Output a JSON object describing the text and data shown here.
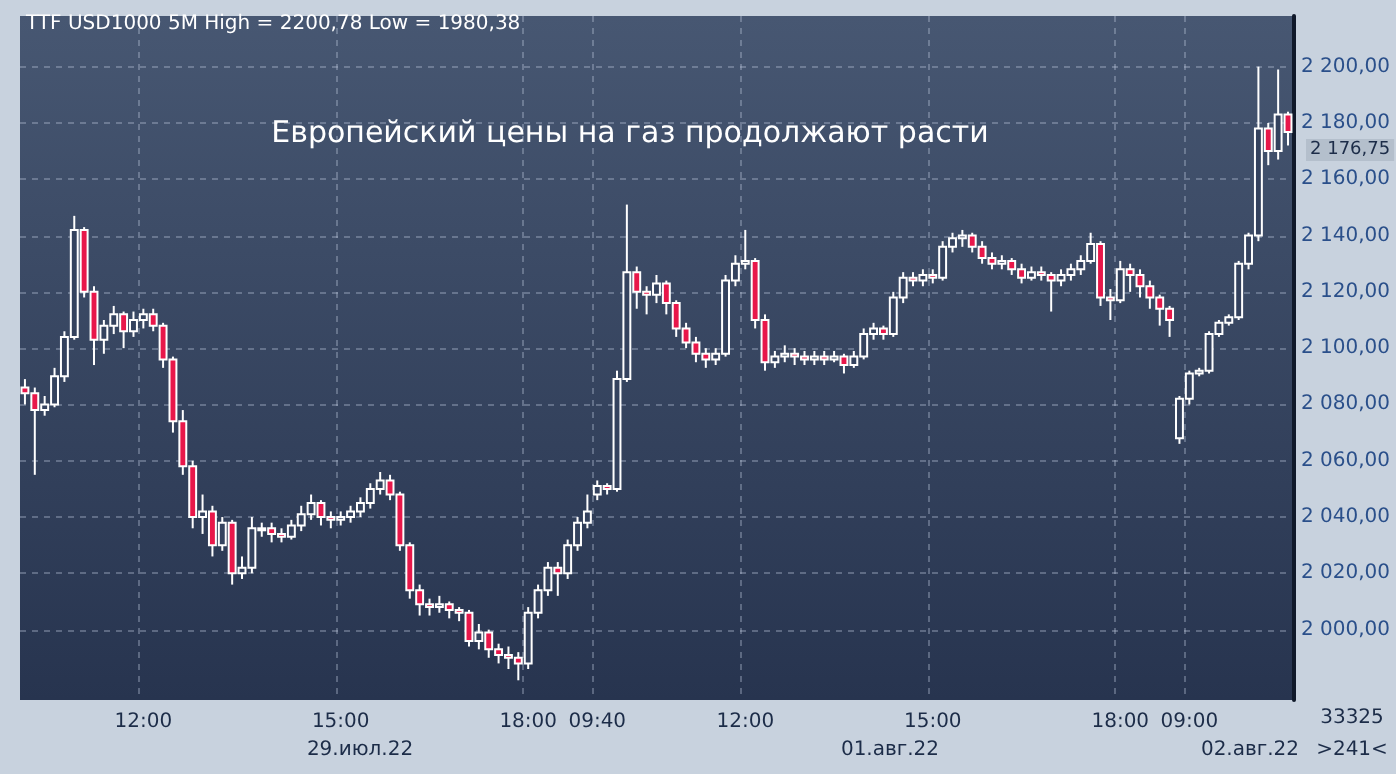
{
  "chart_data": {
    "type": "candlestick",
    "title": "TTF USD1000 5M High = 2200,78 Low = 1980,38",
    "annotations": [
      "Европейский цены на газ продолжают расти",
      "29.июл.22",
      "01.авг.22",
      "02.авг.22",
      "33325",
      ">241<",
      "2 176,75"
    ],
    "categories": [
      null,
      null,
      null,
      null,
      null,
      null,
      null,
      null,
      null,
      null,
      null,
      null,
      "12:00",
      null,
      null,
      null,
      null,
      null,
      null,
      null,
      null,
      null,
      null,
      null,
      null,
      null,
      null,
      null,
      null,
      null,
      null,
      null,
      "15:00",
      null,
      null,
      null,
      null,
      null,
      null,
      null,
      null,
      null,
      null,
      null,
      null,
      null,
      null,
      null,
      null,
      null,
      null,
      "18:00",
      null,
      null,
      null,
      null,
      null,
      null,
      "09:40",
      null,
      null,
      null,
      null,
      null,
      null,
      null,
      null,
      null,
      null,
      null,
      null,
      null,
      null,
      "12:00",
      null,
      null,
      null,
      null,
      null,
      null,
      null,
      null,
      null,
      null,
      null,
      null,
      null,
      null,
      null,
      null,
      null,
      null,
      "15:00",
      null,
      null,
      null,
      null,
      null,
      null,
      null,
      null,
      null,
      null,
      null,
      null,
      null,
      null,
      null,
      null,
      null,
      null,
      "18:00",
      null,
      null,
      null,
      null,
      null,
      null,
      "09:00",
      null,
      null,
      null,
      null,
      null,
      null,
      null,
      null,
      null,
      null
    ],
    "ohlc": [
      [
        2086,
        2089,
        2080,
        2084
      ],
      [
        2084,
        2086,
        2055,
        2078
      ],
      [
        2078,
        2083,
        2076,
        2080
      ],
      [
        2080,
        2093,
        2079,
        2090
      ],
      [
        2090,
        2106,
        2088,
        2104
      ],
      [
        2104,
        2147,
        2103,
        2142
      ],
      [
        2142,
        2143,
        2118,
        2120
      ],
      [
        2120,
        2122,
        2094,
        2103
      ],
      [
        2103,
        2110,
        2098,
        2108
      ],
      [
        2108,
        2115,
        2105,
        2112
      ],
      [
        2112,
        2113,
        2100,
        2106
      ],
      [
        2106,
        2113,
        2104,
        2110
      ],
      [
        2110,
        2114,
        2107,
        2112
      ],
      [
        2112,
        2114,
        2106,
        2108
      ],
      [
        2108,
        2109,
        2093,
        2096
      ],
      [
        2096,
        2097,
        2070,
        2074
      ],
      [
        2074,
        2078,
        2055,
        2058
      ],
      [
        2058,
        2060,
        2036,
        2040
      ],
      [
        2040,
        2048,
        2034,
        2042
      ],
      [
        2042,
        2044,
        2026,
        2030
      ],
      [
        2030,
        2040,
        2028,
        2038
      ],
      [
        2038,
        2039,
        2016,
        2020
      ],
      [
        2020,
        2026,
        2018,
        2022
      ],
      [
        2022,
        2040,
        2020,
        2036
      ],
      [
        2036,
        2038,
        2033,
        2036
      ],
      [
        2036,
        2038,
        2031,
        2034
      ],
      [
        2034,
        2036,
        2031,
        2033
      ],
      [
        2033,
        2039,
        2032,
        2037
      ],
      [
        2037,
        2044,
        2035,
        2041
      ],
      [
        2041,
        2048,
        2039,
        2045
      ],
      [
        2045,
        2046,
        2037,
        2040
      ],
      [
        2040,
        2042,
        2036,
        2039
      ],
      [
        2039,
        2042,
        2037,
        2040
      ],
      [
        2040,
        2044,
        2038,
        2042
      ],
      [
        2042,
        2047,
        2040,
        2045
      ],
      [
        2045,
        2052,
        2043,
        2050
      ],
      [
        2050,
        2056,
        2048,
        2053
      ],
      [
        2053,
        2055,
        2046,
        2048
      ],
      [
        2048,
        2049,
        2028,
        2030
      ],
      [
        2030,
        2031,
        2011,
        2014
      ],
      [
        2014,
        2016,
        2005,
        2009
      ],
      [
        2009,
        2011,
        2005,
        2008
      ],
      [
        2008,
        2012,
        2006,
        2009
      ],
      [
        2009,
        2010,
        2004,
        2007
      ],
      [
        2007,
        2008,
        2003,
        2006
      ],
      [
        2006,
        2007,
        1994,
        1996
      ],
      [
        1996,
        2002,
        1993,
        1999
      ],
      [
        1999,
        2000,
        1990,
        1993
      ],
      [
        1993,
        1995,
        1988,
        1991
      ],
      [
        1991,
        1994,
        1986,
        1990
      ],
      [
        1990,
        1992,
        1982,
        1988
      ],
      [
        1988,
        2008,
        1986,
        2006
      ],
      [
        2006,
        2016,
        2004,
        2014
      ],
      [
        2014,
        2024,
        2012,
        2022
      ],
      [
        2022,
        2024,
        2012,
        2020
      ],
      [
        2020,
        2032,
        2018,
        2030
      ],
      [
        2030,
        2040,
        2028,
        2038
      ],
      [
        2038,
        2048,
        2036,
        2042
      ],
      [
        2048,
        2053,
        2046,
        2051
      ],
      [
        2051,
        2052,
        2048,
        2050
      ],
      [
        2050,
        2092,
        2049,
        2089
      ],
      [
        2089,
        2151,
        2088,
        2127
      ],
      [
        2127,
        2129,
        2114,
        2120
      ],
      [
        2120,
        2122,
        2112,
        2119
      ],
      [
        2119,
        2126,
        2116,
        2123
      ],
      [
        2123,
        2124,
        2112,
        2116
      ],
      [
        2116,
        2117,
        2104,
        2107
      ],
      [
        2107,
        2109,
        2100,
        2102
      ],
      [
        2102,
        2104,
        2095,
        2098
      ],
      [
        2098,
        2100,
        2093,
        2096
      ],
      [
        2096,
        2100,
        2094,
        2098
      ],
      [
        2098,
        2126,
        2097,
        2124
      ],
      [
        2124,
        2133,
        2122,
        2130
      ],
      [
        2130,
        2142,
        2128,
        2131
      ],
      [
        2131,
        2132,
        2107,
        2110
      ],
      [
        2110,
        2112,
        2092,
        2095
      ],
      [
        2095,
        2099,
        2093,
        2097
      ],
      [
        2097,
        2101,
        2095,
        2098
      ],
      [
        2098,
        2100,
        2094,
        2097
      ],
      [
        2097,
        2099,
        2094,
        2096
      ],
      [
        2096,
        2099,
        2094,
        2097
      ],
      [
        2097,
        2099,
        2094,
        2096
      ],
      [
        2096,
        2099,
        2095,
        2097
      ],
      [
        2097,
        2098,
        2091,
        2094
      ],
      [
        2094,
        2099,
        2093,
        2097
      ],
      [
        2097,
        2107,
        2096,
        2105
      ],
      [
        2105,
        2109,
        2103,
        2107
      ],
      [
        2107,
        2108,
        2103,
        2105
      ],
      [
        2105,
        2120,
        2104,
        2118
      ],
      [
        2118,
        2127,
        2116,
        2125
      ],
      [
        2125,
        2127,
        2122,
        2124
      ],
      [
        2124,
        2128,
        2122,
        2126
      ],
      [
        2126,
        2128,
        2123,
        2125
      ],
      [
        2125,
        2138,
        2124,
        2136
      ],
      [
        2136,
        2141,
        2134,
        2139
      ],
      [
        2139,
        2142,
        2136,
        2140
      ],
      [
        2140,
        2141,
        2134,
        2136
      ],
      [
        2136,
        2138,
        2130,
        2132
      ],
      [
        2132,
        2134,
        2128,
        2130
      ],
      [
        2130,
        2133,
        2128,
        2131
      ],
      [
        2131,
        2132,
        2126,
        2128
      ],
      [
        2128,
        2130,
        2123,
        2125
      ],
      [
        2125,
        2129,
        2124,
        2127
      ],
      [
        2127,
        2129,
        2124,
        2126
      ],
      [
        2126,
        2127,
        2113,
        2124
      ],
      [
        2124,
        2128,
        2122,
        2126
      ],
      [
        2126,
        2130,
        2124,
        2128
      ],
      [
        2128,
        2133,
        2126,
        2131
      ],
      [
        2131,
        2141,
        2130,
        2137
      ],
      [
        2137,
        2138,
        2115,
        2118
      ],
      [
        2118,
        2121,
        2110,
        2117
      ],
      [
        2117,
        2131,
        2116,
        2128
      ],
      [
        2128,
        2130,
        2120,
        2126
      ],
      [
        2126,
        2128,
        2118,
        2122
      ],
      [
        2122,
        2124,
        2114,
        2118
      ],
      [
        2118,
        2119,
        2108,
        2114
      ],
      [
        2114,
        2115,
        2104,
        2110
      ],
      [
        2068,
        2083,
        2066,
        2082
      ],
      [
        2082,
        2092,
        2080,
        2091
      ],
      [
        2091,
        2093,
        2090,
        2092
      ],
      [
        2092,
        2106,
        2091,
        2105
      ],
      [
        2105,
        2110,
        2104,
        2109
      ],
      [
        2109,
        2112,
        2108,
        2111
      ],
      [
        2111,
        2131,
        2110,
        2130
      ],
      [
        2130,
        2141,
        2128,
        2140
      ],
      [
        2140,
        2200,
        2138,
        2178
      ],
      [
        2178,
        2180,
        2165,
        2170
      ],
      [
        2170,
        2199,
        2167,
        2183
      ],
      [
        2183,
        2184,
        2172,
        2176.75
      ]
    ],
    "ylim": [
      1975,
      2218
    ],
    "yticks": [
      {
        "value": 2000,
        "label": "2 000,00"
      },
      {
        "value": 2020,
        "label": "2 020,00"
      },
      {
        "value": 2040,
        "label": "2 040,00"
      },
      {
        "value": 2060,
        "label": "2 060,00"
      },
      {
        "value": 2080,
        "label": "2 080,00"
      },
      {
        "value": 2100,
        "label": "2 100,00"
      },
      {
        "value": 2120,
        "label": "2 120,00"
      },
      {
        "value": 2140,
        "label": "2 140,00"
      },
      {
        "value": 2160,
        "label": "2 160,00"
      },
      {
        "value": 2180,
        "label": "2 180,00"
      },
      {
        "value": 2200,
        "label": "2 200,00"
      }
    ],
    "grid": true
  }
}
